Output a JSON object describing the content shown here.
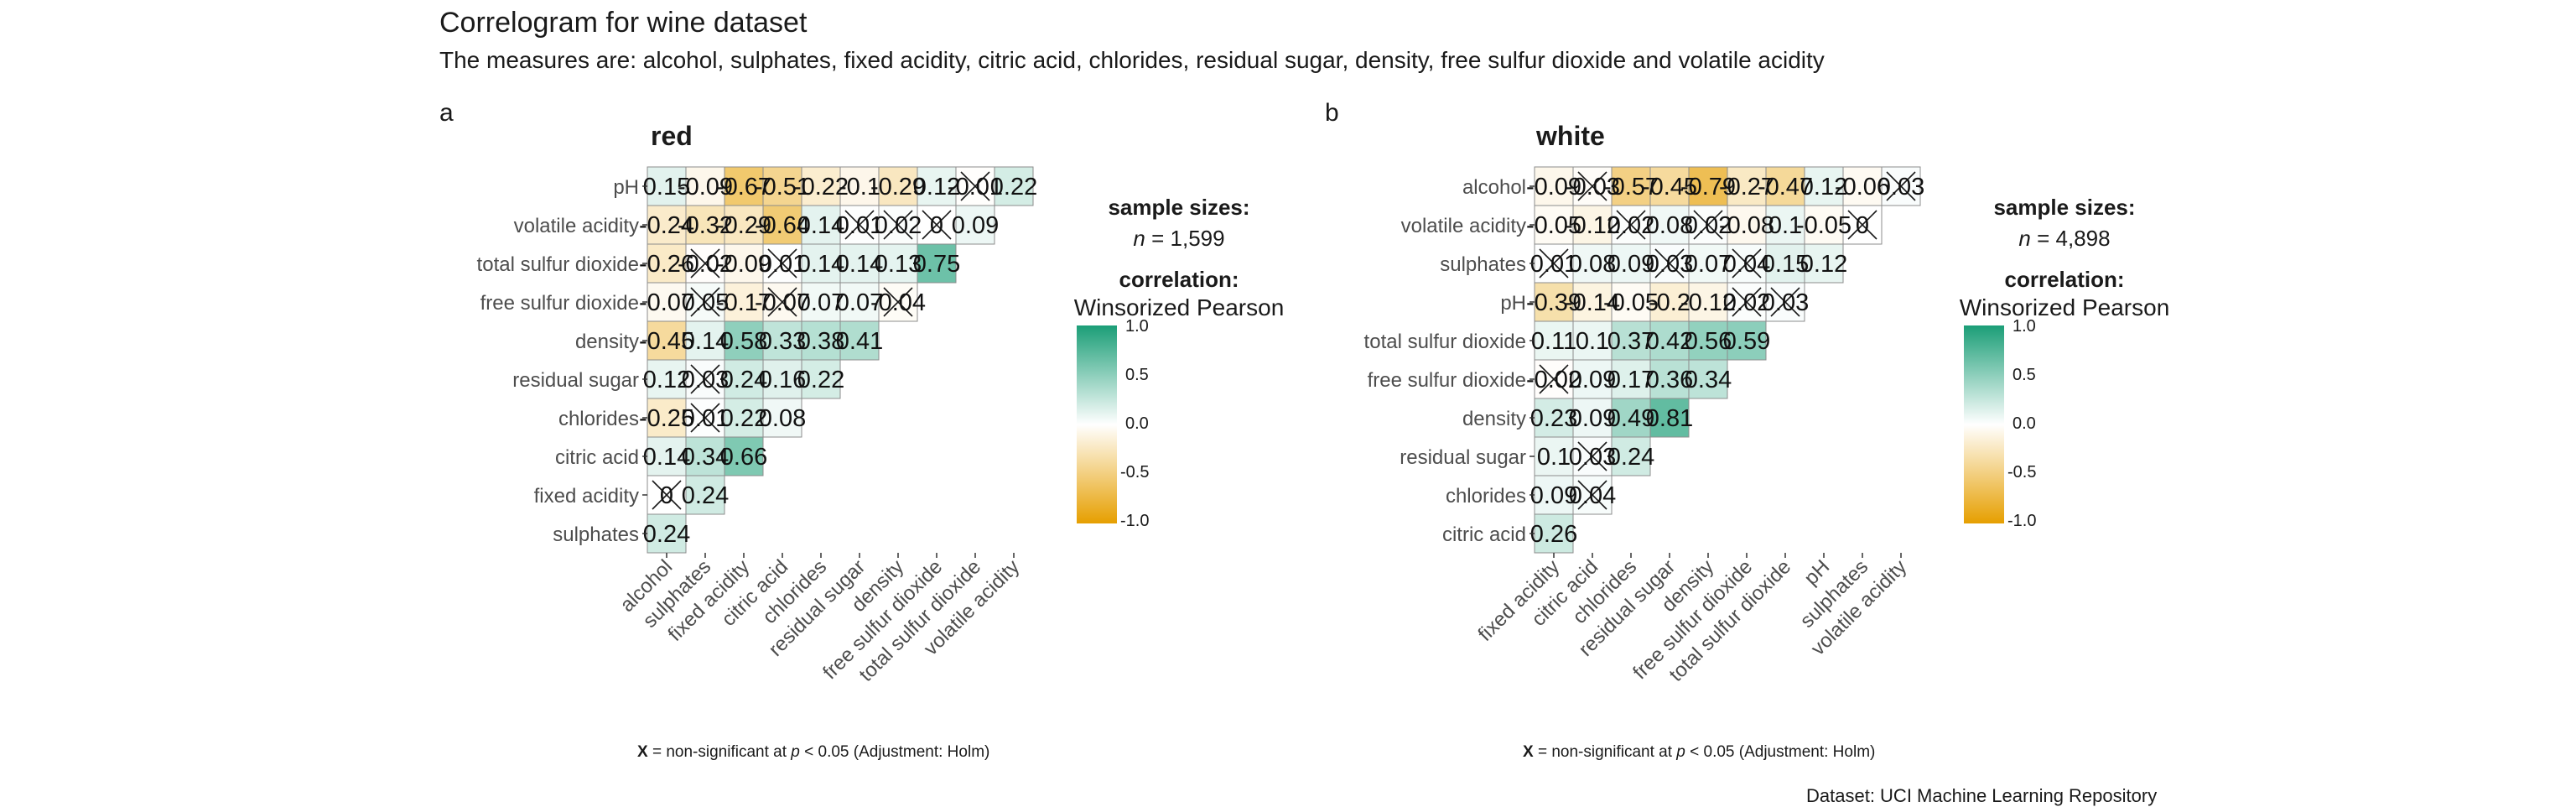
{
  "title": "Correlogram for wine dataset",
  "subtitle": "The measures are: alcohol, sulphates, fixed acidity, citric acid, chlorides, residual sugar, density, free sulfur dioxide and volatile acidity",
  "caption": "Dataset: UCI Machine Learning Repository",
  "colors": {
    "high": "#1b9e77",
    "mid": "#ffffff",
    "low": "#e69f00",
    "grid": "#8c8c8c"
  },
  "chart_data": [
    {
      "type": "heatmap",
      "tag": "a",
      "title": "red",
      "sample_label": "sample sizes:",
      "sample_size": "1,599",
      "corr_label": "correlation:",
      "corr_method": "Winsorized Pearson",
      "legend_ticks": [
        "1.0",
        "0.5",
        "0.0",
        "-0.5",
        "-1.0"
      ],
      "footnote": {
        "x": "X",
        "before": " = non-significant at ",
        "p": "p",
        "after": " < 0.05 (Adjustment: Holm)"
      },
      "x_labels": [
        "alcohol",
        "sulphates",
        "fixed acidity",
        "citric acid",
        "chlorides",
        "residual sugar",
        "density",
        "free sulfur dioxide",
        "total sulfur dioxide",
        "volatile acidity"
      ],
      "y_labels": [
        "pH",
        "volatile acidity",
        "total sulfur dioxide",
        "free sulfur dioxide",
        "density",
        "residual sugar",
        "chlorides",
        "citric acid",
        "fixed acidity",
        "sulphates"
      ],
      "cells": [
        {
          "row": 0,
          "col": 0,
          "value": 0.15,
          "label": "0.15",
          "ns": false
        },
        {
          "row": 0,
          "col": 1,
          "value": -0.09,
          "label": "-0.09",
          "ns": false
        },
        {
          "row": 0,
          "col": 2,
          "value": -0.67,
          "label": "-0.67",
          "ns": false
        },
        {
          "row": 0,
          "col": 3,
          "value": -0.51,
          "label": "-0.51",
          "ns": false
        },
        {
          "row": 0,
          "col": 4,
          "value": -0.22,
          "label": "-0.22",
          "ns": false
        },
        {
          "row": 0,
          "col": 5,
          "value": -0.1,
          "label": "-0.1",
          "ns": false
        },
        {
          "row": 0,
          "col": 6,
          "value": -0.29,
          "label": "-0.29",
          "ns": false
        },
        {
          "row": 0,
          "col": 7,
          "value": 0.12,
          "label": "0.12",
          "ns": false
        },
        {
          "row": 0,
          "col": 8,
          "value": -0.01,
          "label": "-0.01",
          "ns": true
        },
        {
          "row": 0,
          "col": 9,
          "value": 0.22,
          "label": "0.22",
          "ns": false
        },
        {
          "row": 1,
          "col": 0,
          "value": -0.24,
          "label": "-0.24",
          "ns": false
        },
        {
          "row": 1,
          "col": 1,
          "value": -0.32,
          "label": "-0.32",
          "ns": false
        },
        {
          "row": 1,
          "col": 2,
          "value": -0.29,
          "label": "-0.29",
          "ns": false
        },
        {
          "row": 1,
          "col": 3,
          "value": -0.64,
          "label": "-0.64",
          "ns": false
        },
        {
          "row": 1,
          "col": 4,
          "value": 0.14,
          "label": "0.14",
          "ns": false
        },
        {
          "row": 1,
          "col": 5,
          "value": 0.01,
          "label": "0.01",
          "ns": true
        },
        {
          "row": 1,
          "col": 6,
          "value": 0.02,
          "label": "0.02",
          "ns": true
        },
        {
          "row": 1,
          "col": 7,
          "value": 0,
          "label": "0",
          "ns": true
        },
        {
          "row": 1,
          "col": 8,
          "value": 0.09,
          "label": "0.09",
          "ns": false
        },
        {
          "row": 2,
          "col": 0,
          "value": -0.26,
          "label": "-0.26",
          "ns": false
        },
        {
          "row": 2,
          "col": 1,
          "value": -0.02,
          "label": "-0.02",
          "ns": true
        },
        {
          "row": 2,
          "col": 2,
          "value": -0.09,
          "label": "-0.09",
          "ns": false
        },
        {
          "row": 2,
          "col": 3,
          "value": 0.01,
          "label": "0.01",
          "ns": true
        },
        {
          "row": 2,
          "col": 4,
          "value": 0.14,
          "label": "0.14",
          "ns": false
        },
        {
          "row": 2,
          "col": 5,
          "value": 0.14,
          "label": "0.14",
          "ns": false
        },
        {
          "row": 2,
          "col": 6,
          "value": 0.13,
          "label": "0.13",
          "ns": false
        },
        {
          "row": 2,
          "col": 7,
          "value": 0.75,
          "label": "0.75",
          "ns": false
        },
        {
          "row": 3,
          "col": 0,
          "value": -0.07,
          "label": "-0.07",
          "ns": false
        },
        {
          "row": 3,
          "col": 1,
          "value": 0.05,
          "label": "0.05",
          "ns": true
        },
        {
          "row": 3,
          "col": 2,
          "value": -0.17,
          "label": "-0.17",
          "ns": false
        },
        {
          "row": 3,
          "col": 3,
          "value": -0.07,
          "label": "-0.07",
          "ns": true
        },
        {
          "row": 3,
          "col": 4,
          "value": 0.07,
          "label": "0.07",
          "ns": false
        },
        {
          "row": 3,
          "col": 5,
          "value": 0.07,
          "label": "0.07",
          "ns": false
        },
        {
          "row": 3,
          "col": 6,
          "value": -0.04,
          "label": "-0.04",
          "ns": true
        },
        {
          "row": 4,
          "col": 0,
          "value": -0.45,
          "label": "-0.45",
          "ns": false
        },
        {
          "row": 4,
          "col": 1,
          "value": 0.14,
          "label": "0.14",
          "ns": false
        },
        {
          "row": 4,
          "col": 2,
          "value": 0.58,
          "label": "0.58",
          "ns": false
        },
        {
          "row": 4,
          "col": 3,
          "value": 0.33,
          "label": "0.33",
          "ns": false
        },
        {
          "row": 4,
          "col": 4,
          "value": 0.38,
          "label": "0.38",
          "ns": false
        },
        {
          "row": 4,
          "col": 5,
          "value": 0.41,
          "label": "0.41",
          "ns": false
        },
        {
          "row": 5,
          "col": 0,
          "value": 0.12,
          "label": "0.12",
          "ns": false
        },
        {
          "row": 5,
          "col": 1,
          "value": 0.03,
          "label": "0.03",
          "ns": true
        },
        {
          "row": 5,
          "col": 2,
          "value": 0.24,
          "label": "0.24",
          "ns": false
        },
        {
          "row": 5,
          "col": 3,
          "value": 0.16,
          "label": "0.16",
          "ns": false
        },
        {
          "row": 5,
          "col": 4,
          "value": 0.22,
          "label": "0.22",
          "ns": false
        },
        {
          "row": 6,
          "col": 0,
          "value": -0.25,
          "label": "-0.25",
          "ns": false
        },
        {
          "row": 6,
          "col": 1,
          "value": 0.01,
          "label": "0.01",
          "ns": true
        },
        {
          "row": 6,
          "col": 2,
          "value": 0.22,
          "label": "0.22",
          "ns": false
        },
        {
          "row": 6,
          "col": 3,
          "value": 0.08,
          "label": "0.08",
          "ns": false
        },
        {
          "row": 7,
          "col": 0,
          "value": 0.14,
          "label": "0.14",
          "ns": false
        },
        {
          "row": 7,
          "col": 1,
          "value": 0.34,
          "label": "0.34",
          "ns": false
        },
        {
          "row": 7,
          "col": 2,
          "value": 0.66,
          "label": "0.66",
          "ns": false
        },
        {
          "row": 8,
          "col": 0,
          "value": 0,
          "label": "0",
          "ns": true
        },
        {
          "row": 8,
          "col": 1,
          "value": 0.24,
          "label": "0.24",
          "ns": false
        },
        {
          "row": 9,
          "col": 0,
          "value": 0.24,
          "label": "0.24",
          "ns": false
        }
      ]
    },
    {
      "type": "heatmap",
      "tag": "b",
      "title": "white",
      "sample_label": "sample sizes:",
      "sample_size": "4,898",
      "corr_label": "correlation:",
      "corr_method": "Winsorized Pearson",
      "legend_ticks": [
        "1.0",
        "0.5",
        "0.0",
        "-0.5",
        "-1.0"
      ],
      "footnote": {
        "x": "X",
        "before": " = non-significant at ",
        "p": "p",
        "after": " < 0.05 (Adjustment: Holm)"
      },
      "x_labels": [
        "fixed acidity",
        "citric acid",
        "chlorides",
        "residual sugar",
        "density",
        "free sulfur dioxide",
        "total sulfur dioxide",
        "pH",
        "sulphates",
        "volatile acidity"
      ],
      "y_labels": [
        "alcohol",
        "volatile acidity",
        "sulphates",
        "pH",
        "total sulfur dioxide",
        "free sulfur dioxide",
        "density",
        "residual sugar",
        "chlorides",
        "citric acid"
      ],
      "cells": [
        {
          "row": 0,
          "col": 0,
          "value": -0.09,
          "label": "-0.09",
          "ns": false
        },
        {
          "row": 0,
          "col": 1,
          "value": -0.03,
          "label": "-0.03",
          "ns": true
        },
        {
          "row": 0,
          "col": 2,
          "value": -0.57,
          "label": "-0.57",
          "ns": false
        },
        {
          "row": 0,
          "col": 3,
          "value": -0.45,
          "label": "-0.45",
          "ns": false
        },
        {
          "row": 0,
          "col": 4,
          "value": -0.79,
          "label": "-0.79",
          "ns": false
        },
        {
          "row": 0,
          "col": 5,
          "value": -0.27,
          "label": "-0.27",
          "ns": false
        },
        {
          "row": 0,
          "col": 6,
          "value": -0.47,
          "label": "-0.47",
          "ns": false
        },
        {
          "row": 0,
          "col": 7,
          "value": 0.12,
          "label": "0.12",
          "ns": false
        },
        {
          "row": 0,
          "col": 8,
          "value": -0.06,
          "label": "-0.06",
          "ns": false
        },
        {
          "row": 0,
          "col": 9,
          "value": 0.03,
          "label": "0.03",
          "ns": true
        },
        {
          "row": 1,
          "col": 0,
          "value": -0.05,
          "label": "-0.05",
          "ns": false
        },
        {
          "row": 1,
          "col": 1,
          "value": -0.12,
          "label": "-0.12",
          "ns": false
        },
        {
          "row": 1,
          "col": 2,
          "value": 0.02,
          "label": "0.02",
          "ns": true
        },
        {
          "row": 1,
          "col": 3,
          "value": 0.08,
          "label": "0.08",
          "ns": false
        },
        {
          "row": 1,
          "col": 4,
          "value": 0.02,
          "label": "0.02",
          "ns": true
        },
        {
          "row": 1,
          "col": 5,
          "value": -0.08,
          "label": "-0.08",
          "ns": false
        },
        {
          "row": 1,
          "col": 6,
          "value": 0.1,
          "label": "0.1",
          "ns": false
        },
        {
          "row": 1,
          "col": 7,
          "value": -0.05,
          "label": "-0.05",
          "ns": false
        },
        {
          "row": 1,
          "col": 8,
          "value": 0,
          "label": "0",
          "ns": true
        },
        {
          "row": 2,
          "col": 0,
          "value": 0.01,
          "label": "0.01",
          "ns": true
        },
        {
          "row": 2,
          "col": 1,
          "value": 0.08,
          "label": "0.08",
          "ns": false
        },
        {
          "row": 2,
          "col": 2,
          "value": 0.09,
          "label": "0.09",
          "ns": false
        },
        {
          "row": 2,
          "col": 3,
          "value": 0.03,
          "label": "0.03",
          "ns": true
        },
        {
          "row": 2,
          "col": 4,
          "value": 0.07,
          "label": "0.07",
          "ns": false
        },
        {
          "row": 2,
          "col": 5,
          "value": 0.04,
          "label": "0.04",
          "ns": true
        },
        {
          "row": 2,
          "col": 6,
          "value": 0.15,
          "label": "0.15",
          "ns": false
        },
        {
          "row": 2,
          "col": 7,
          "value": 0.12,
          "label": "0.12",
          "ns": false
        },
        {
          "row": 3,
          "col": 0,
          "value": -0.39,
          "label": "-0.39",
          "ns": false
        },
        {
          "row": 3,
          "col": 1,
          "value": -0.14,
          "label": "-0.14",
          "ns": false
        },
        {
          "row": 3,
          "col": 2,
          "value": -0.05,
          "label": "-0.05",
          "ns": false
        },
        {
          "row": 3,
          "col": 3,
          "value": -0.2,
          "label": "-0.2",
          "ns": false
        },
        {
          "row": 3,
          "col": 4,
          "value": -0.12,
          "label": "-0.12",
          "ns": false
        },
        {
          "row": 3,
          "col": 5,
          "value": 0.02,
          "label": "0.02",
          "ns": true
        },
        {
          "row": 3,
          "col": 6,
          "value": 0.03,
          "label": "0.03",
          "ns": true
        },
        {
          "row": 4,
          "col": 0,
          "value": 0.11,
          "label": "0.11",
          "ns": false
        },
        {
          "row": 4,
          "col": 1,
          "value": 0.1,
          "label": "0.1",
          "ns": false
        },
        {
          "row": 4,
          "col": 2,
          "value": 0.37,
          "label": "0.37",
          "ns": false
        },
        {
          "row": 4,
          "col": 3,
          "value": 0.42,
          "label": "0.42",
          "ns": false
        },
        {
          "row": 4,
          "col": 4,
          "value": 0.56,
          "label": "0.56",
          "ns": false
        },
        {
          "row": 4,
          "col": 5,
          "value": 0.59,
          "label": "0.59",
          "ns": false
        },
        {
          "row": 5,
          "col": 0,
          "value": -0.02,
          "label": "-0.02",
          "ns": true
        },
        {
          "row": 5,
          "col": 1,
          "value": 0.09,
          "label": "0.09",
          "ns": false
        },
        {
          "row": 5,
          "col": 2,
          "value": 0.17,
          "label": "0.17",
          "ns": false
        },
        {
          "row": 5,
          "col": 3,
          "value": 0.36,
          "label": "0.36",
          "ns": false
        },
        {
          "row": 5,
          "col": 4,
          "value": 0.34,
          "label": "0.34",
          "ns": false
        },
        {
          "row": 6,
          "col": 0,
          "value": 0.23,
          "label": "0.23",
          "ns": false
        },
        {
          "row": 6,
          "col": 1,
          "value": 0.09,
          "label": "0.09",
          "ns": false
        },
        {
          "row": 6,
          "col": 2,
          "value": 0.49,
          "label": "0.49",
          "ns": false
        },
        {
          "row": 6,
          "col": 3,
          "value": 0.81,
          "label": "0.81",
          "ns": false
        },
        {
          "row": 7,
          "col": 0,
          "value": 0.1,
          "label": "0.1",
          "ns": false
        },
        {
          "row": 7,
          "col": 1,
          "value": 0.03,
          "label": "0.03",
          "ns": true
        },
        {
          "row": 7,
          "col": 2,
          "value": 0.24,
          "label": "0.24",
          "ns": false
        },
        {
          "row": 8,
          "col": 0,
          "value": 0.09,
          "label": "0.09",
          "ns": false
        },
        {
          "row": 8,
          "col": 1,
          "value": 0.04,
          "label": "0.04",
          "ns": true
        },
        {
          "row": 9,
          "col": 0,
          "value": 0.26,
          "label": "0.26",
          "ns": false
        }
      ]
    }
  ]
}
